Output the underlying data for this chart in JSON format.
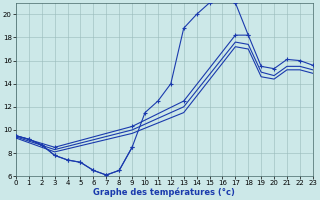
{
  "xlabel": "Graphe des températures (°c)",
  "bg_color": "#cce8e8",
  "line_color": "#1a3aad",
  "grid_color": "#99bbbb",
  "xlim": [
    0,
    23
  ],
  "ylim": [
    6,
    21
  ],
  "yticks": [
    6,
    8,
    10,
    12,
    14,
    16,
    18,
    20
  ],
  "xticks": [
    0,
    1,
    2,
    3,
    4,
    5,
    6,
    7,
    8,
    9,
    10,
    11,
    12,
    13,
    14,
    15,
    16,
    17,
    18,
    19,
    20,
    21,
    22,
    23
  ],
  "curve_bell": {
    "x": [
      0,
      1,
      2,
      3,
      4,
      5,
      6,
      7,
      8,
      9,
      10,
      11,
      12,
      13,
      14,
      15,
      16,
      17,
      18
    ],
    "y": [
      9.5,
      9.2,
      8.7,
      7.8,
      7.4,
      7.2,
      6.5,
      6.1,
      6.5,
      8.5,
      11.5,
      12.5,
      14.0,
      18.8,
      20.0,
      21.0,
      21.3,
      21.0,
      18.2
    ],
    "markers": true
  },
  "curve_diag1": {
    "x": [
      0,
      3,
      9,
      13,
      17,
      18,
      19,
      20,
      21,
      22,
      23
    ],
    "y": [
      9.5,
      8.5,
      10.3,
      12.5,
      18.2,
      18.2,
      15.5,
      15.3,
      16.1,
      16.0,
      15.6
    ],
    "markers": true
  },
  "curve_diag2": {
    "x": [
      0,
      3,
      9,
      13,
      17,
      18,
      19,
      20,
      21,
      22,
      23
    ],
    "y": [
      9.4,
      8.3,
      10.0,
      12.0,
      17.6,
      17.4,
      15.0,
      14.7,
      15.5,
      15.5,
      15.2
    ],
    "markers": false
  },
  "curve_diag3": {
    "x": [
      0,
      3,
      9,
      13,
      17,
      18,
      19,
      20,
      21,
      22,
      23
    ],
    "y": [
      9.3,
      8.1,
      9.7,
      11.5,
      17.2,
      17.0,
      14.6,
      14.4,
      15.2,
      15.2,
      14.9
    ],
    "markers": false
  },
  "curve_low": {
    "x": [
      0,
      1,
      2,
      3,
      4,
      5,
      6,
      7,
      8,
      9
    ],
    "y": [
      9.5,
      9.2,
      8.7,
      7.8,
      7.4,
      7.2,
      6.5,
      6.1,
      6.5,
      8.5
    ],
    "markers": true
  }
}
